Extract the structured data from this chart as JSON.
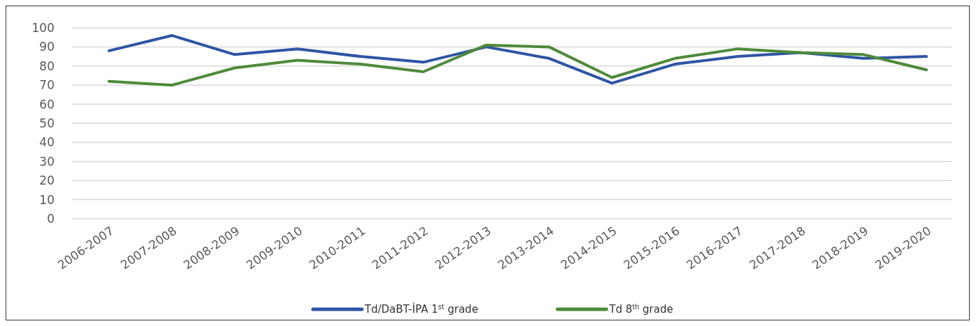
{
  "chart_data": {
    "type": "line",
    "categories": [
      "2006-2007",
      "2007-2008",
      "2008-2009",
      "2009-2010",
      "2010-2011",
      "2011-2012",
      "2012-2013",
      "2013-2014",
      "2014-2015",
      "2015-2016",
      "2016-2017",
      "2017-2018",
      "2018-2019",
      "2019-2020"
    ],
    "series": [
      {
        "name": "Td/DaBT-İPA 1$^{st}$ grade",
        "color": "#2e55a5",
        "values": [
          88,
          96,
          86,
          89,
          85,
          82,
          90,
          84,
          71,
          81,
          85,
          87,
          84,
          85
        ]
      },
      {
        "name": "Td 8$^{th}$ grade",
        "color": "#4e8a3a",
        "values": [
          72,
          70,
          79,
          83,
          81,
          77,
          91,
          90,
          74,
          84,
          89,
          87,
          86,
          78
        ]
      }
    ],
    "ylim": [
      0,
      100
    ],
    "yticks": [
      0,
      10,
      20,
      30,
      40,
      50,
      60,
      70,
      80,
      90,
      100
    ],
    "grid": "y",
    "legend": "bottom",
    "marker": "none",
    "line_style": "solid"
  }
}
